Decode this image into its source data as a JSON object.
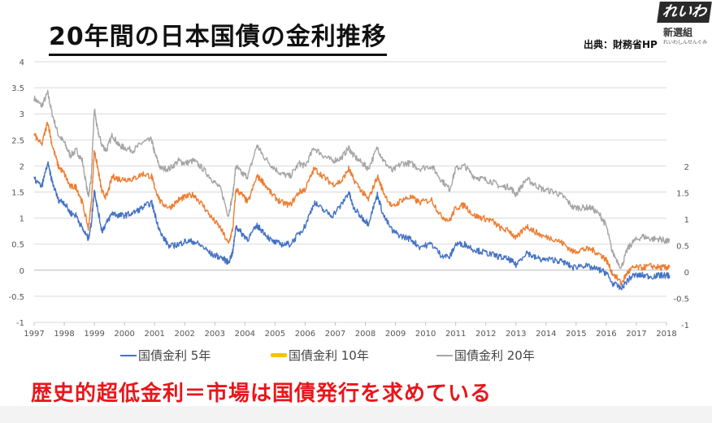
{
  "header": {
    "title": "20年間の日本国債の金利推移",
    "source": "出典：財務省HP"
  },
  "logo": {
    "main": "れいわ",
    "sub": "新選組",
    "tiny": "れいわしんせんぐみ"
  },
  "footer": {
    "text": "歴史的超低金利＝市場は国債発行を求めている"
  },
  "colors": {
    "series_5y": "#4472c4",
    "series_10y": "#ed7d31",
    "series_20y": "#a5a5a5",
    "legend_10y": "#ffc000",
    "footer": "#e8161b"
  },
  "chart_data": {
    "type": "line",
    "title": "",
    "xlabel": "",
    "ylabel": "",
    "x_ticks": [
      "1997",
      "1998",
      "1999",
      "2000",
      "2001",
      "2002",
      "2003",
      "2004",
      "2005",
      "2006",
      "2007",
      "2008",
      "2009",
      "2010",
      "2011",
      "2012",
      "2013",
      "2014",
      "2015",
      "2016",
      "2017",
      "2018"
    ],
    "y_left_ticks": [
      "4",
      "3.5",
      "3",
      "2.5",
      "2",
      "1.5",
      "1",
      "0.5",
      "0",
      "-0.5",
      "-1"
    ],
    "y_right_ticks": [
      "2",
      "1.5",
      "1",
      "0.5",
      "0",
      "-0.5",
      "-1"
    ],
    "ylim": [
      -1,
      4
    ],
    "grid": true,
    "legend_position": "bottom",
    "series": [
      {
        "name": "国債金利 5年",
        "points": [
          [
            1997.0,
            1.75
          ],
          [
            1997.25,
            1.6
          ],
          [
            1997.45,
            2.05
          ],
          [
            1997.6,
            1.7
          ],
          [
            1997.8,
            1.35
          ],
          [
            1998.0,
            1.3
          ],
          [
            1998.2,
            1.1
          ],
          [
            1998.4,
            1.05
          ],
          [
            1998.6,
            0.8
          ],
          [
            1998.8,
            0.6
          ],
          [
            1998.9,
            0.9
          ],
          [
            1999.0,
            1.55
          ],
          [
            1999.1,
            1.2
          ],
          [
            1999.25,
            0.75
          ],
          [
            1999.4,
            0.9
          ],
          [
            1999.6,
            1.1
          ],
          [
            1999.8,
            1.05
          ],
          [
            2000.0,
            1.05
          ],
          [
            2000.3,
            1.1
          ],
          [
            2000.6,
            1.2
          ],
          [
            2000.9,
            1.3
          ],
          [
            2001.0,
            1.1
          ],
          [
            2001.2,
            0.7
          ],
          [
            2001.5,
            0.45
          ],
          [
            2001.8,
            0.5
          ],
          [
            2002.0,
            0.55
          ],
          [
            2002.3,
            0.55
          ],
          [
            2002.6,
            0.45
          ],
          [
            2002.9,
            0.3
          ],
          [
            2003.2,
            0.25
          ],
          [
            2003.45,
            0.15
          ],
          [
            2003.6,
            0.35
          ],
          [
            2003.7,
            0.85
          ],
          [
            2003.9,
            0.7
          ],
          [
            2004.1,
            0.6
          ],
          [
            2004.4,
            0.85
          ],
          [
            2004.6,
            0.75
          ],
          [
            2004.9,
            0.55
          ],
          [
            2005.2,
            0.5
          ],
          [
            2005.5,
            0.5
          ],
          [
            2005.8,
            0.7
          ],
          [
            2006.0,
            0.85
          ],
          [
            2006.3,
            1.3
          ],
          [
            2006.6,
            1.15
          ],
          [
            2006.9,
            1.05
          ],
          [
            2007.2,
            1.25
          ],
          [
            2007.45,
            1.5
          ],
          [
            2007.6,
            1.2
          ],
          [
            2007.9,
            1.0
          ],
          [
            2008.1,
            0.9
          ],
          [
            2008.4,
            1.45
          ],
          [
            2008.6,
            1.05
          ],
          [
            2008.9,
            0.75
          ],
          [
            2009.2,
            0.65
          ],
          [
            2009.5,
            0.6
          ],
          [
            2009.8,
            0.45
          ],
          [
            2010.2,
            0.5
          ],
          [
            2010.5,
            0.3
          ],
          [
            2010.8,
            0.25
          ],
          [
            2011.0,
            0.5
          ],
          [
            2011.3,
            0.5
          ],
          [
            2011.6,
            0.4
          ],
          [
            2011.9,
            0.35
          ],
          [
            2012.2,
            0.3
          ],
          [
            2012.5,
            0.25
          ],
          [
            2012.8,
            0.2
          ],
          [
            2013.0,
            0.1
          ],
          [
            2013.35,
            0.35
          ],
          [
            2013.6,
            0.25
          ],
          [
            2013.9,
            0.2
          ],
          [
            2014.3,
            0.2
          ],
          [
            2014.6,
            0.15
          ],
          [
            2014.9,
            0.05
          ],
          [
            2015.2,
            0.1
          ],
          [
            2015.5,
            0.05
          ],
          [
            2015.8,
            0.0
          ],
          [
            2016.0,
            -0.05
          ],
          [
            2016.2,
            -0.25
          ],
          [
            2016.5,
            -0.35
          ],
          [
            2016.7,
            -0.2
          ],
          [
            2016.9,
            -0.1
          ],
          [
            2017.2,
            -0.1
          ],
          [
            2017.5,
            -0.12
          ],
          [
            2017.8,
            -0.1
          ],
          [
            2018.0,
            -0.1
          ],
          [
            2018.1,
            -0.1
          ]
        ]
      },
      {
        "name": "国債金利 10年",
        "points": [
          [
            1997.0,
            2.6
          ],
          [
            1997.25,
            2.4
          ],
          [
            1997.45,
            2.85
          ],
          [
            1997.6,
            2.4
          ],
          [
            1997.8,
            2.0
          ],
          [
            1998.0,
            1.85
          ],
          [
            1998.2,
            1.6
          ],
          [
            1998.4,
            1.6
          ],
          [
            1998.6,
            1.3
          ],
          [
            1998.8,
            0.8
          ],
          [
            1998.9,
            1.3
          ],
          [
            1999.0,
            2.3
          ],
          [
            1999.1,
            2.0
          ],
          [
            1999.25,
            1.5
          ],
          [
            1999.4,
            1.4
          ],
          [
            1999.6,
            1.8
          ],
          [
            1999.8,
            1.75
          ],
          [
            2000.0,
            1.75
          ],
          [
            2000.3,
            1.75
          ],
          [
            2000.6,
            1.85
          ],
          [
            2000.9,
            1.8
          ],
          [
            2001.0,
            1.6
          ],
          [
            2001.2,
            1.3
          ],
          [
            2001.5,
            1.2
          ],
          [
            2001.8,
            1.35
          ],
          [
            2002.0,
            1.4
          ],
          [
            2002.3,
            1.45
          ],
          [
            2002.6,
            1.25
          ],
          [
            2002.9,
            1.0
          ],
          [
            2003.2,
            0.8
          ],
          [
            2003.45,
            0.5
          ],
          [
            2003.6,
            0.8
          ],
          [
            2003.7,
            1.55
          ],
          [
            2003.9,
            1.45
          ],
          [
            2004.1,
            1.3
          ],
          [
            2004.4,
            1.8
          ],
          [
            2004.6,
            1.7
          ],
          [
            2004.9,
            1.45
          ],
          [
            2005.2,
            1.3
          ],
          [
            2005.5,
            1.25
          ],
          [
            2005.8,
            1.5
          ],
          [
            2006.0,
            1.55
          ],
          [
            2006.3,
            1.95
          ],
          [
            2006.6,
            1.8
          ],
          [
            2006.9,
            1.65
          ],
          [
            2007.2,
            1.7
          ],
          [
            2007.45,
            1.95
          ],
          [
            2007.6,
            1.75
          ],
          [
            2007.9,
            1.5
          ],
          [
            2008.1,
            1.35
          ],
          [
            2008.4,
            1.8
          ],
          [
            2008.6,
            1.5
          ],
          [
            2008.9,
            1.2
          ],
          [
            2009.2,
            1.35
          ],
          [
            2009.5,
            1.4
          ],
          [
            2009.8,
            1.3
          ],
          [
            2010.2,
            1.35
          ],
          [
            2010.5,
            1.05
          ],
          [
            2010.8,
            0.95
          ],
          [
            2011.0,
            1.2
          ],
          [
            2011.3,
            1.25
          ],
          [
            2011.6,
            1.05
          ],
          [
            2011.9,
            1.0
          ],
          [
            2012.2,
            0.95
          ],
          [
            2012.5,
            0.8
          ],
          [
            2012.8,
            0.75
          ],
          [
            2013.0,
            0.6
          ],
          [
            2013.35,
            0.85
          ],
          [
            2013.6,
            0.75
          ],
          [
            2013.9,
            0.65
          ],
          [
            2014.3,
            0.6
          ],
          [
            2014.6,
            0.5
          ],
          [
            2014.9,
            0.35
          ],
          [
            2015.2,
            0.4
          ],
          [
            2015.5,
            0.4
          ],
          [
            2015.8,
            0.3
          ],
          [
            2016.0,
            0.2
          ],
          [
            2016.2,
            -0.05
          ],
          [
            2016.5,
            -0.25
          ],
          [
            2016.7,
            -0.05
          ],
          [
            2016.9,
            0.05
          ],
          [
            2017.2,
            0.05
          ],
          [
            2017.5,
            0.08
          ],
          [
            2017.8,
            0.05
          ],
          [
            2018.0,
            0.05
          ],
          [
            2018.1,
            0.05
          ]
        ]
      },
      {
        "name": "国債金利 20年",
        "points": [
          [
            1997.0,
            3.3
          ],
          [
            1997.25,
            3.15
          ],
          [
            1997.45,
            3.4
          ],
          [
            1997.6,
            3.0
          ],
          [
            1997.8,
            2.6
          ],
          [
            1998.0,
            2.45
          ],
          [
            1998.2,
            2.2
          ],
          [
            1998.4,
            2.3
          ],
          [
            1998.6,
            2.1
          ],
          [
            1998.8,
            1.4
          ],
          [
            1998.9,
            1.8
          ],
          [
            1999.0,
            3.1
          ],
          [
            1999.1,
            2.7
          ],
          [
            1999.25,
            2.4
          ],
          [
            1999.4,
            2.3
          ],
          [
            1999.6,
            2.6
          ],
          [
            1999.8,
            2.4
          ],
          [
            2000.0,
            2.35
          ],
          [
            2000.3,
            2.3
          ],
          [
            2000.6,
            2.45
          ],
          [
            2000.9,
            2.5
          ],
          [
            2001.0,
            2.25
          ],
          [
            2001.2,
            1.95
          ],
          [
            2001.5,
            1.95
          ],
          [
            2001.8,
            2.1
          ],
          [
            2002.0,
            2.05
          ],
          [
            2002.3,
            2.1
          ],
          [
            2002.6,
            1.95
          ],
          [
            2002.9,
            1.75
          ],
          [
            2003.2,
            1.55
          ],
          [
            2003.45,
            1.05
          ],
          [
            2003.6,
            1.45
          ],
          [
            2003.7,
            2.0
          ],
          [
            2003.9,
            1.85
          ],
          [
            2004.1,
            1.8
          ],
          [
            2004.4,
            2.4
          ],
          [
            2004.6,
            2.2
          ],
          [
            2004.9,
            2.0
          ],
          [
            2005.2,
            1.85
          ],
          [
            2005.5,
            1.8
          ],
          [
            2005.8,
            2.05
          ],
          [
            2006.0,
            2.0
          ],
          [
            2006.3,
            2.35
          ],
          [
            2006.6,
            2.2
          ],
          [
            2006.9,
            2.1
          ],
          [
            2007.2,
            2.15
          ],
          [
            2007.45,
            2.35
          ],
          [
            2007.6,
            2.2
          ],
          [
            2007.9,
            2.05
          ],
          [
            2008.1,
            1.95
          ],
          [
            2008.4,
            2.35
          ],
          [
            2008.6,
            2.1
          ],
          [
            2008.9,
            1.9
          ],
          [
            2009.2,
            2.05
          ],
          [
            2009.5,
            2.05
          ],
          [
            2009.8,
            1.95
          ],
          [
            2010.2,
            2.0
          ],
          [
            2010.5,
            1.75
          ],
          [
            2010.8,
            1.55
          ],
          [
            2011.0,
            1.95
          ],
          [
            2011.3,
            2.0
          ],
          [
            2011.6,
            1.8
          ],
          [
            2011.9,
            1.75
          ],
          [
            2012.2,
            1.7
          ],
          [
            2012.5,
            1.6
          ],
          [
            2012.8,
            1.6
          ],
          [
            2013.0,
            1.45
          ],
          [
            2013.35,
            1.75
          ],
          [
            2013.6,
            1.65
          ],
          [
            2013.9,
            1.55
          ],
          [
            2014.3,
            1.5
          ],
          [
            2014.6,
            1.4
          ],
          [
            2014.9,
            1.2
          ],
          [
            2015.2,
            1.2
          ],
          [
            2015.5,
            1.2
          ],
          [
            2015.8,
            1.05
          ],
          [
            2016.0,
            0.85
          ],
          [
            2016.2,
            0.35
          ],
          [
            2016.5,
            0.05
          ],
          [
            2016.7,
            0.4
          ],
          [
            2016.9,
            0.55
          ],
          [
            2017.2,
            0.65
          ],
          [
            2017.5,
            0.6
          ],
          [
            2017.8,
            0.6
          ],
          [
            2018.0,
            0.55
          ],
          [
            2018.1,
            0.57
          ]
        ]
      }
    ]
  }
}
